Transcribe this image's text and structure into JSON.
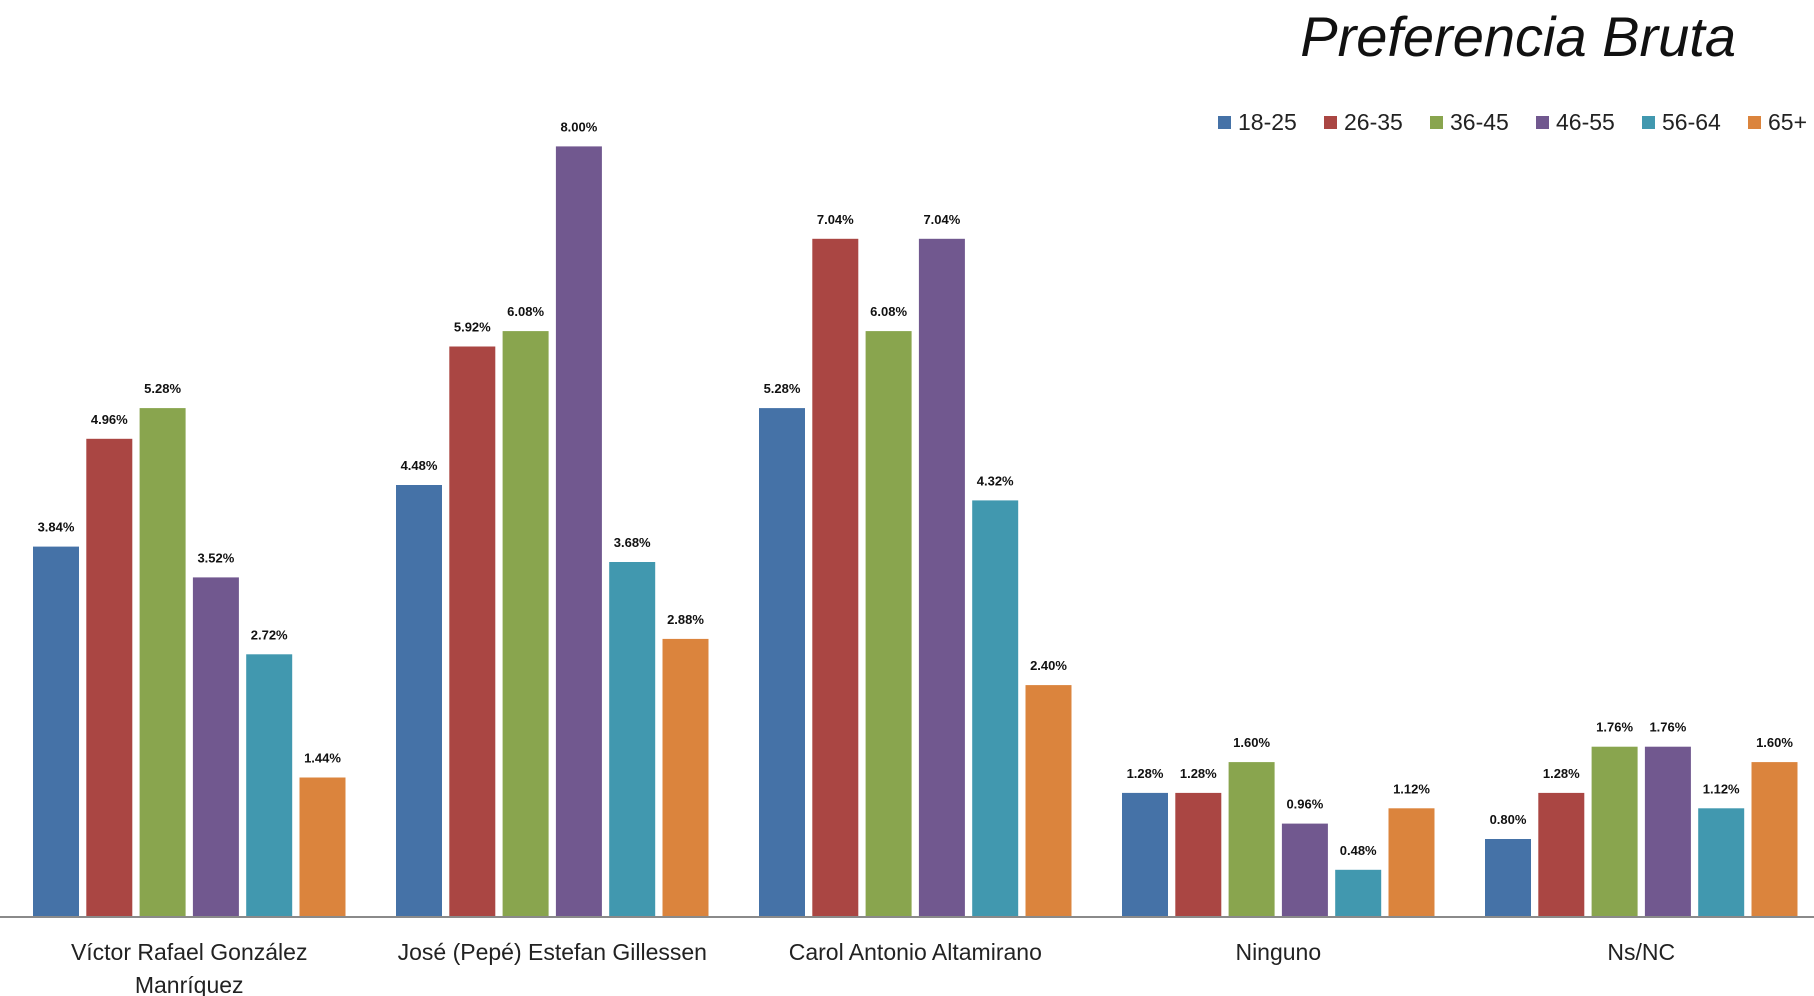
{
  "chart_data": {
    "type": "bar",
    "title": "Preferencia Bruta",
    "xlabel": "",
    "ylabel": "",
    "ylim": [
      0,
      9
    ],
    "grid": false,
    "legend_position": "top-right",
    "categories": [
      [
        "Víctor Rafael González",
        "Manríquez"
      ],
      [
        "José (Pepé) Estefan Gillessen"
      ],
      [
        "Carol Antonio Altamirano"
      ],
      [
        "Ninguno"
      ],
      [
        "Ns/NC"
      ]
    ],
    "series": [
      {
        "name": "18-25",
        "color": "#4572A7",
        "values": [
          3.84,
          4.48,
          5.28,
          1.28,
          0.8
        ],
        "labels": [
          "3.84%",
          "4.48%",
          "5.28%",
          "1.28%",
          "0.80%"
        ]
      },
      {
        "name": "26-35",
        "color": "#AA4643",
        "values": [
          4.96,
          5.92,
          7.04,
          1.28,
          1.28
        ],
        "labels": [
          "4.96%",
          "5.92%",
          "7.04%",
          "1.28%",
          "1.28%"
        ]
      },
      {
        "name": "36-45",
        "color": "#89A54E",
        "values": [
          5.28,
          6.08,
          6.08,
          1.6,
          1.76
        ],
        "labels": [
          "5.28%",
          "6.08%",
          "6.08%",
          "1.60%",
          "1.76%"
        ]
      },
      {
        "name": "46-55",
        "color": "#71588F",
        "values": [
          3.52,
          8.0,
          7.04,
          0.96,
          1.76
        ],
        "labels": [
          "3.52%",
          "8.00%",
          "7.04%",
          "0.96%",
          "1.76%"
        ]
      },
      {
        "name": "56-64",
        "color": "#4198AF",
        "values": [
          2.72,
          3.68,
          4.32,
          0.48,
          1.12
        ],
        "labels": [
          "2.72%",
          "3.68%",
          "4.32%",
          "0.48%",
          "1.12%"
        ]
      },
      {
        "name": "65+",
        "color": "#DB843D",
        "values": [
          1.44,
          2.88,
          2.4,
          1.12,
          1.6
        ],
        "labels": [
          "1.44%",
          "2.88%",
          "2.40%",
          "1.12%",
          "1.60%"
        ]
      }
    ]
  }
}
